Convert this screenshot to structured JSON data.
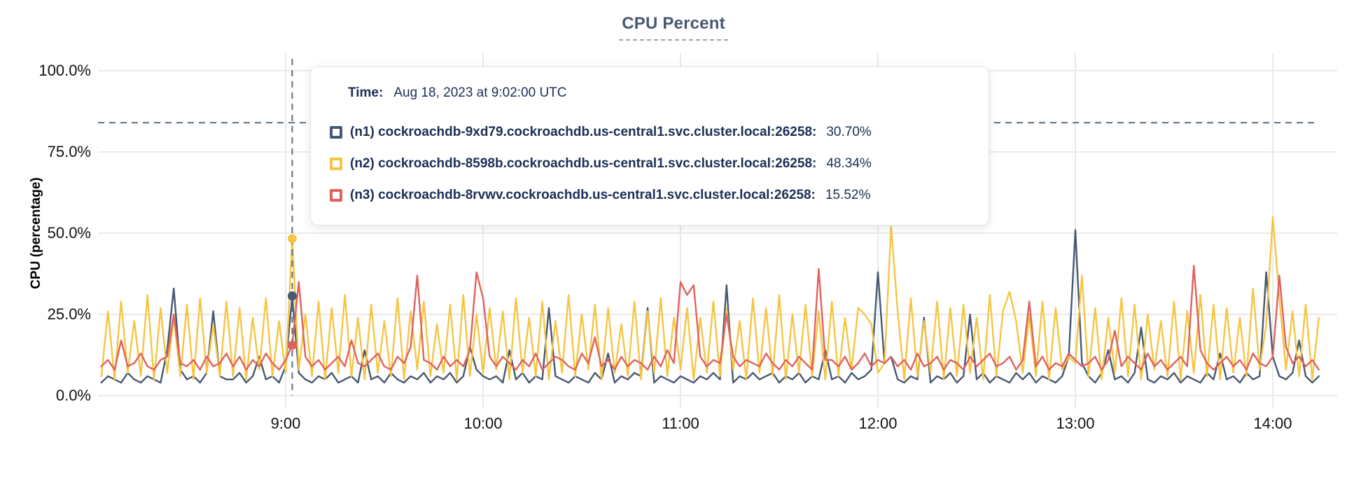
{
  "title": {
    "text": "CPU Percent"
  },
  "tooltip": {
    "time_label": "Time:",
    "time_value": "Aug 18, 2023 at 9:02:00 UTC",
    "rows": [
      {
        "series": "n1",
        "label": "(n1) cockroachdb-9xd79.cockroachdb.us-central1.svc.cluster.local:26258:",
        "value": "30.70%",
        "color": "#475872"
      },
      {
        "series": "n2",
        "label": "(n2) cockroachdb-8598b.cockroachdb.us-central1.svc.cluster.local:26258:",
        "value": "48.34%",
        "color": "#F5C543"
      },
      {
        "series": "n3",
        "label": "(n3) cockroachdb-8rvwv.cockroachdb.us-central1.svc.cluster.local:26258:",
        "value": "15.52%",
        "color": "#E0625C"
      }
    ]
  },
  "chart_data": {
    "type": "line",
    "title": "CPU Percent",
    "xlabel": "",
    "ylabel": "CPU (percentage)",
    "ylim": [
      0,
      100
    ],
    "grid": true,
    "grid_color": "#e9eaec",
    "axis_text_color": "#111111",
    "legend_position": "tooltip-overlay",
    "y_ticks": [
      {
        "value": 0,
        "label": "0.0%"
      },
      {
        "value": 25,
        "label": "25.0%"
      },
      {
        "value": 50,
        "label": "50.0%"
      },
      {
        "value": 75,
        "label": "75.0%"
      },
      {
        "value": 100,
        "label": "100.0%"
      }
    ],
    "x_ticks": [
      {
        "minute": 540,
        "label": "9:00"
      },
      {
        "minute": 600,
        "label": "10:00"
      },
      {
        "minute": 660,
        "label": "11:00"
      },
      {
        "minute": 720,
        "label": "12:00"
      },
      {
        "minute": 780,
        "label": "13:00"
      },
      {
        "minute": 840,
        "label": "14:00"
      }
    ],
    "x_start_minutes": 484,
    "x_step_minutes": 2,
    "x_range_minutes": [
      484,
      854
    ],
    "crosshair": {
      "x_minute": 542,
      "y_percent": 84,
      "color": "#5b7083"
    },
    "hover_markers": [
      {
        "series": "n1",
        "value": 30.7
      },
      {
        "series": "n2",
        "value": 48.34
      },
      {
        "series": "n3",
        "value": 15.52
      }
    ],
    "series": [
      {
        "id": "n1",
        "name": "(n1) cockroachdb-9xd79.cockroachdb.us-central1.svc.cluster.local:26258",
        "color": "#475872",
        "values": [
          4,
          6,
          5,
          4,
          7,
          5,
          4,
          6,
          5,
          4,
          14,
          33,
          8,
          5,
          6,
          4,
          7,
          26,
          6,
          5,
          5,
          7,
          4,
          6,
          12,
          5,
          6,
          4,
          9,
          30.7,
          7,
          5,
          4,
          6,
          5,
          7,
          4,
          5,
          6,
          4,
          14,
          5,
          6,
          4,
          7,
          5,
          4,
          6,
          5,
          7,
          4,
          6,
          5,
          7,
          4,
          6,
          15,
          8,
          6,
          5,
          6,
          4,
          14,
          5,
          7,
          4,
          6,
          5,
          27,
          6,
          5,
          4,
          6,
          5,
          4,
          7,
          5,
          13,
          4,
          6,
          5,
          7,
          6,
          27,
          4,
          6,
          5,
          4,
          6,
          5,
          4,
          6,
          5,
          7,
          5,
          34,
          4,
          6,
          5,
          7,
          5,
          6,
          7,
          4,
          6,
          5,
          7,
          4,
          6,
          5,
          14,
          5,
          6,
          4,
          7,
          5,
          6,
          8,
          38,
          10,
          12,
          5,
          4,
          6,
          5,
          24,
          4,
          6,
          5,
          7,
          4,
          6,
          25,
          5,
          7,
          4,
          6,
          5,
          4,
          7,
          5,
          7,
          4,
          6,
          5,
          4,
          6,
          12,
          51,
          10,
          6,
          4,
          7,
          14,
          5,
          6,
          4,
          7,
          21,
          5,
          4,
          6,
          5,
          7,
          4,
          6,
          5,
          4,
          7,
          5,
          13,
          5,
          6,
          4,
          7,
          5,
          6,
          38,
          12,
          6,
          5,
          7,
          17,
          6,
          4,
          6
        ]
      },
      {
        "id": "n2",
        "name": "(n2) cockroachdb-8598b.cockroachdb.us-central1.svc.cluster.local:26258",
        "color": "#F5C543",
        "values": [
          6,
          26,
          5,
          29,
          7,
          23,
          6,
          31,
          5,
          27,
          7,
          24,
          6,
          28,
          5,
          30,
          7,
          22,
          6,
          29,
          6,
          27,
          5,
          24,
          8,
          30,
          6,
          23,
          7,
          48.34,
          8,
          25,
          6,
          29,
          5,
          27,
          7,
          31,
          6,
          24,
          5,
          28,
          7,
          23,
          6,
          30,
          5,
          26,
          8,
          29,
          6,
          22,
          7,
          28,
          5,
          31,
          6,
          25,
          7,
          27,
          8,
          26,
          5,
          30,
          7,
          24,
          6,
          29,
          5,
          23,
          7,
          31,
          6,
          25,
          8,
          28,
          5,
          27,
          7,
          22,
          6,
          29,
          5,
          26,
          7,
          30,
          6,
          24,
          8,
          27,
          5,
          24,
          7,
          29,
          6,
          27,
          8,
          23,
          5,
          30,
          7,
          27,
          6,
          31,
          5,
          25,
          7,
          28,
          6,
          26,
          5,
          29,
          6,
          24,
          8,
          27,
          25,
          22,
          7,
          10,
          52,
          26,
          5,
          30,
          6,
          23,
          7,
          29,
          5,
          27,
          6,
          28,
          7,
          24,
          5,
          31,
          6,
          26,
          32,
          23,
          7,
          25,
          6,
          29,
          5,
          27,
          8,
          12,
          10,
          37,
          6,
          27,
          5,
          24,
          7,
          30,
          6,
          28,
          5,
          25,
          8,
          23,
          6,
          29,
          5,
          26,
          7,
          31,
          6,
          28,
          5,
          27,
          7,
          24,
          6,
          33,
          8,
          22,
          55,
          30,
          8,
          26,
          6,
          28,
          5,
          24
        ]
      },
      {
        "id": "n3",
        "name": "(n3) cockroachdb-8rvwv.cockroachdb.us-central1.svc.cluster.local:26258",
        "color": "#E0625C",
        "values": [
          9,
          11,
          8,
          17,
          9,
          10,
          13,
          9,
          8,
          11,
          12,
          25,
          10,
          9,
          11,
          8,
          12,
          9,
          10,
          13,
          9,
          12,
          8,
          11,
          9,
          13,
          10,
          8,
          11,
          15.52,
          35,
          12,
          9,
          11,
          8,
          10,
          12,
          9,
          17,
          10,
          9,
          11,
          13,
          9,
          8,
          12,
          10,
          15,
          37,
          11,
          10,
          8,
          12,
          9,
          11,
          9,
          14,
          38,
          30,
          12,
          9,
          12,
          10,
          8,
          11,
          9,
          13,
          8,
          10,
          12,
          11,
          9,
          8,
          13,
          10,
          18,
          9,
          11,
          8,
          12,
          9,
          11,
          10,
          8,
          12,
          9,
          14,
          10,
          35,
          31,
          34,
          12,
          9,
          11,
          10,
          25,
          12,
          9,
          11,
          10,
          9,
          13,
          10,
          8,
          11,
          9,
          12,
          10,
          8,
          39,
          11,
          11,
          9,
          12,
          8,
          10,
          13,
          9,
          11,
          10,
          12,
          9,
          11,
          8,
          13,
          9,
          10,
          12,
          8,
          11,
          10,
          8,
          12,
          9,
          11,
          13,
          9,
          10,
          12,
          8,
          11,
          29,
          9,
          12,
          8,
          10,
          9,
          13,
          11,
          9,
          10,
          12,
          8,
          11,
          20,
          9,
          12,
          10,
          8,
          13,
          9,
          11,
          8,
          10,
          12,
          9,
          40,
          14,
          10,
          8,
          10,
          12,
          9,
          11,
          8,
          13,
          10,
          9,
          12,
          37,
          15,
          10,
          12,
          9,
          11,
          8
        ]
      }
    ]
  }
}
